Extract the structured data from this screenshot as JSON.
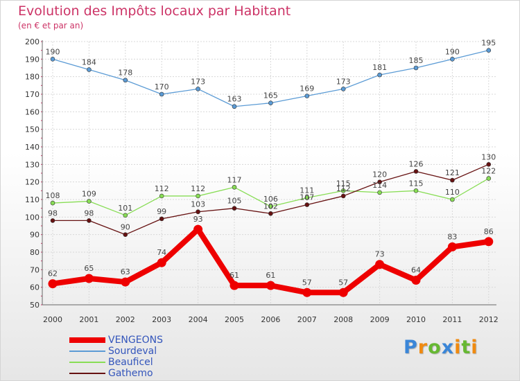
{
  "chart_data": {
    "type": "line",
    "title": "Evolution des Impôts locaux par Habitant",
    "subtitle": "(en € et par an)",
    "xlabel": "",
    "ylabel": "",
    "categories": [
      "2000",
      "2001",
      "2002",
      "2003",
      "2004",
      "2005",
      "2006",
      "2007",
      "2008",
      "2009",
      "2010",
      "2011",
      "2012"
    ],
    "ylim": [
      50,
      200
    ],
    "yticks": [
      50,
      60,
      70,
      80,
      90,
      100,
      110,
      120,
      130,
      140,
      150,
      160,
      170,
      180,
      190,
      200
    ],
    "grid": true,
    "legend_position": "bottom-left",
    "series": [
      {
        "name": "VENGEONS",
        "color": "#ee0000",
        "values": [
          62,
          65,
          63,
          74,
          93,
          61,
          61,
          57,
          57,
          73,
          64,
          83,
          86
        ]
      },
      {
        "name": "Sourdeval",
        "color": "#5b9bd5",
        "values": [
          190,
          184,
          178,
          170,
          173,
          163,
          165,
          169,
          173,
          181,
          185,
          190,
          195
        ]
      },
      {
        "name": "Beauficel",
        "color": "#88dd55",
        "values": [
          108,
          109,
          101,
          112,
          112,
          117,
          106,
          111,
          115,
          114,
          115,
          110,
          122
        ]
      },
      {
        "name": "Gathemo",
        "color": "#661111",
        "values": [
          98,
          98,
          90,
          99,
          103,
          105,
          102,
          107,
          112,
          120,
          126,
          121,
          130
        ]
      }
    ]
  },
  "logo": {
    "text": "Proxiti",
    "letters": [
      {
        "ch": "P",
        "color": "#3a86d8"
      },
      {
        "ch": "r",
        "color": "#f08a10"
      },
      {
        "ch": "o",
        "color": "#66b832"
      },
      {
        "ch": "x",
        "color": "#3a86d8"
      },
      {
        "ch": "i",
        "color": "#f08a10"
      },
      {
        "ch": "t",
        "color": "#66b832"
      },
      {
        "ch": "i",
        "color": "#f08a10"
      }
    ]
  }
}
